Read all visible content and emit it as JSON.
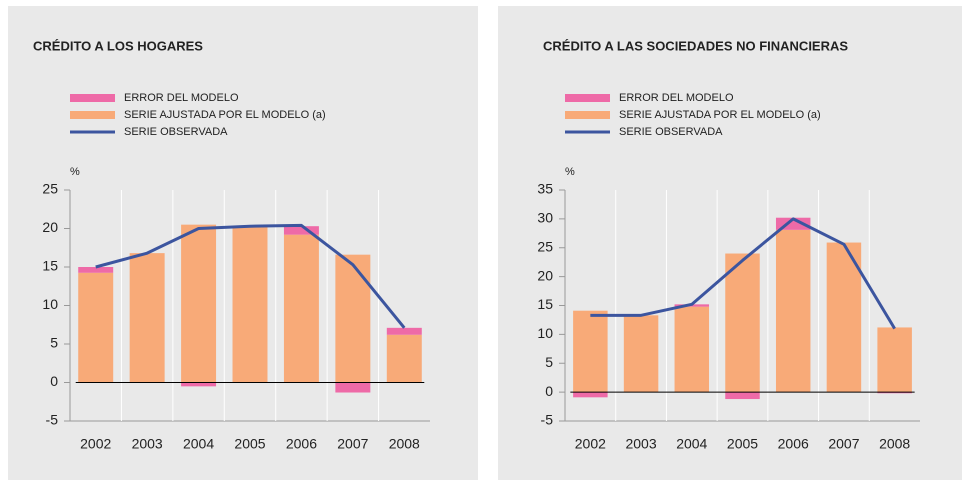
{
  "chart_data": [
    {
      "type": "bar",
      "title": "CRÉDITO A LOS HOGARES",
      "ylabel": "%",
      "categories": [
        "2002",
        "2003",
        "2004",
        "2005",
        "2006",
        "2007",
        "2008"
      ],
      "ylim": [
        -5,
        25
      ],
      "yticks": [
        -5,
        0,
        5,
        10,
        15,
        20,
        25
      ],
      "series": [
        {
          "name": "ERROR DEL MODELO",
          "color": "#ee6aa7",
          "values": [
            0.75,
            0,
            -0.5,
            0,
            1.1,
            -1.3,
            0.9
          ]
        },
        {
          "name": "SERIE AJUSTADA POR EL MODELO (a)",
          "color": "#f8aa78",
          "values": [
            14.25,
            16.8,
            20.5,
            20.3,
            19.2,
            16.6,
            6.2
          ]
        },
        {
          "name": "SERIE OBSERVADA",
          "color": "#3c559f",
          "type": "line",
          "values": [
            15.0,
            16.8,
            20.0,
            20.3,
            20.4,
            15.3,
            7.1
          ]
        }
      ]
    },
    {
      "type": "bar",
      "title": "CRÉDITO A LAS SOCIEDADES NO FINANCIERAS",
      "ylabel": "%",
      "categories": [
        "2002",
        "2003",
        "2004",
        "2005",
        "2006",
        "2007",
        "2008"
      ],
      "ylim": [
        -5,
        35
      ],
      "yticks": [
        -5,
        0,
        5,
        10,
        15,
        20,
        25,
        30,
        35
      ],
      "series": [
        {
          "name": "ERROR DEL MODELO",
          "color": "#ee6aa7",
          "values": [
            -0.9,
            0,
            0.4,
            -1.2,
            2.1,
            0,
            -0.2
          ]
        },
        {
          "name": "SERIE AJUSTADA POR EL MODELO (a)",
          "color": "#f8aa78",
          "values": [
            14.1,
            13.3,
            14.8,
            24.0,
            28.1,
            25.9,
            11.2
          ]
        },
        {
          "name": "SERIE OBSERVADA",
          "color": "#3c559f",
          "type": "line",
          "values": [
            13.3,
            13.3,
            15.2,
            22.8,
            30.0,
            25.6,
            11.0
          ]
        }
      ]
    }
  ]
}
